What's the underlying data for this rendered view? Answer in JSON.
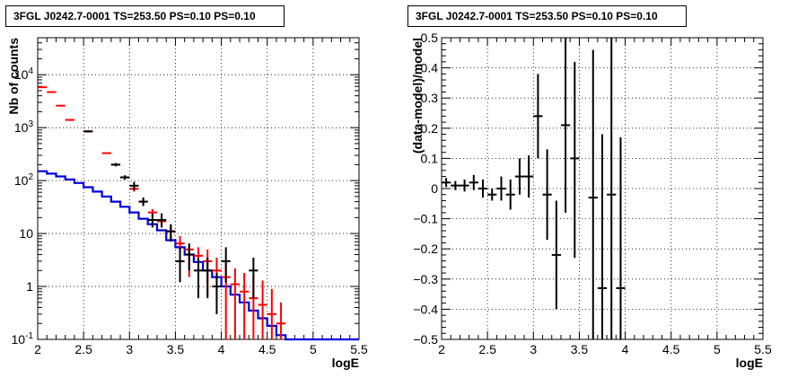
{
  "chart_data": [
    {
      "type": "scatter",
      "title": "3FGL J0242.7-0001 TS=253.50 PS=0.10 PS=0.10",
      "xlabel": "logE",
      "ylabel": "Nb of counts",
      "xlim": [
        2,
        5.5
      ],
      "ylim": [
        0.1,
        50000
      ],
      "yscale": "log",
      "grid": true,
      "xticks": [
        "2",
        "2.5",
        "3",
        "3.5",
        "4",
        "4.5",
        "5",
        "5.5"
      ],
      "yticks": [
        "10^-1",
        "1",
        "10",
        "10^2",
        "10^3",
        "10^4"
      ],
      "series": [
        {
          "color": "#ff0000",
          "points": [
            {
              "x": 2.05,
              "y": 5800,
              "ylo": 5800,
              "yhi": 5800
            },
            {
              "x": 2.15,
              "y": 4700,
              "ylo": 4700,
              "yhi": 4700
            },
            {
              "x": 2.25,
              "y": 2600,
              "ylo": 2600,
              "yhi": 2600
            },
            {
              "x": 2.35,
              "y": 1400,
              "ylo": 1400,
              "yhi": 1400
            },
            {
              "x": 2.55,
              "y": 850,
              "ylo": 850,
              "yhi": 850
            },
            {
              "x": 2.75,
              "y": 330,
              "ylo": 330,
              "yhi": 330
            },
            {
              "x": 2.85,
              "y": 200,
              "ylo": 190,
              "yhi": 210
            },
            {
              "x": 2.95,
              "y": 115,
              "ylo": 105,
              "yhi": 125
            },
            {
              "x": 3.05,
              "y": 70,
              "ylo": 62,
              "yhi": 78
            },
            {
              "x": 3.15,
              "y": 40,
              "ylo": 35,
              "yhi": 46
            },
            {
              "x": 3.25,
              "y": 25,
              "ylo": 21,
              "yhi": 29
            },
            {
              "x": 3.35,
              "y": 17,
              "ylo": 13,
              "yhi": 21
            },
            {
              "x": 3.45,
              "y": 11,
              "ylo": 8,
              "yhi": 14
            },
            {
              "x": 3.55,
              "y": 6.5,
              "ylo": 4.2,
              "yhi": 9
            },
            {
              "x": 3.65,
              "y": 5,
              "ylo": 1.5,
              "yhi": 6
            },
            {
              "x": 3.75,
              "y": 3.8,
              "ylo": 1.2,
              "yhi": 5.5
            },
            {
              "x": 3.85,
              "y": 3,
              "ylo": 0.7,
              "yhi": 5
            },
            {
              "x": 3.95,
              "y": 2,
              "ylo": 0.5,
              "yhi": 3.5
            },
            {
              "x": 4.05,
              "y": 1.5,
              "ylo": 0.1,
              "yhi": 2.8
            },
            {
              "x": 4.15,
              "y": 1.1,
              "ylo": 0.1,
              "yhi": 2.2
            },
            {
              "x": 4.25,
              "y": 0.8,
              "ylo": 0.1,
              "yhi": 1.8
            },
            {
              "x": 4.35,
              "y": 0.6,
              "ylo": 0.1,
              "yhi": 1.6
            },
            {
              "x": 4.45,
              "y": 0.45,
              "ylo": 0.1,
              "yhi": 1.3
            },
            {
              "x": 4.55,
              "y": 0.3,
              "ylo": 0.1,
              "yhi": 0.9
            },
            {
              "x": 4.65,
              "y": 0.2,
              "ylo": 0.1,
              "yhi": 0.5
            }
          ]
        },
        {
          "color": "#000000",
          "points": [
            {
              "x": 2.55,
              "y": 850,
              "ylo": 810,
              "yhi": 890
            },
            {
              "x": 2.85,
              "y": 200,
              "ylo": 185,
              "yhi": 215
            },
            {
              "x": 2.95,
              "y": 115,
              "ylo": 104,
              "yhi": 126
            },
            {
              "x": 3.05,
              "y": 80,
              "ylo": 65,
              "yhi": 95
            },
            {
              "x": 3.15,
              "y": 40,
              "ylo": 33,
              "yhi": 48
            },
            {
              "x": 3.25,
              "y": 18,
              "ylo": 13,
              "yhi": 24
            },
            {
              "x": 3.35,
              "y": 18,
              "ylo": 13,
              "yhi": 24
            },
            {
              "x": 3.45,
              "y": 11,
              "ylo": 7,
              "yhi": 15
            },
            {
              "x": 3.55,
              "y": 3,
              "ylo": 1.2,
              "yhi": 5.5
            },
            {
              "x": 3.65,
              "y": 4,
              "ylo": 2,
              "yhi": 6.5
            },
            {
              "x": 3.75,
              "y": 2,
              "ylo": 0.6,
              "yhi": 3.5
            },
            {
              "x": 3.85,
              "y": 2,
              "ylo": 0.6,
              "yhi": 3.5
            },
            {
              "x": 3.95,
              "y": 1,
              "ylo": 0.3,
              "yhi": 1.8
            },
            {
              "x": 4.05,
              "y": 3,
              "ylo": 1.2,
              "yhi": 5.5
            },
            {
              "x": 4.35,
              "y": 2,
              "ylo": 0.6,
              "yhi": 3.5
            }
          ]
        }
      ],
      "model_line": {
        "color": "#0000dd",
        "bin_edges": [
          2.0,
          2.1,
          2.2,
          2.3,
          2.4,
          2.5,
          2.6,
          2.7,
          2.8,
          2.9,
          3.0,
          3.1,
          3.2,
          3.3,
          3.4,
          3.5,
          3.6,
          3.7,
          3.8,
          3.9,
          4.0,
          4.1,
          4.2,
          4.3,
          4.4,
          4.5,
          4.6,
          4.7,
          5.5
        ],
        "values": [
          150,
          135,
          120,
          105,
          90,
          75,
          62,
          50,
          40,
          32,
          25,
          19,
          15,
          11.5,
          7.5,
          5.5,
          4,
          2.9,
          2.0,
          1.5,
          1.0,
          0.7,
          0.5,
          0.35,
          0.25,
          0.18,
          0.12,
          0.1
        ]
      }
    },
    {
      "type": "scatter",
      "title": "3FGL J0242.7-0001 TS=253.50 PS=0.10 PS=0.10",
      "xlabel": "logE",
      "ylabel": "(data-model)/model",
      "xlim": [
        2,
        5.5
      ],
      "ylim": [
        -0.5,
        0.5
      ],
      "grid": true,
      "xticks": [
        "2",
        "2.5",
        "3",
        "3.5",
        "4",
        "4.5",
        "5",
        "5.5"
      ],
      "yticks": [
        "−0.5",
        "−0.4",
        "−0.3",
        "−0.2",
        "−0.1",
        "0",
        "0.1",
        "0.2",
        "0.3",
        "0.4",
        "0.5"
      ],
      "series": [
        {
          "color": "#000000",
          "points": [
            {
              "x": 2.05,
              "y": 0.02,
              "ylo": 0.005,
              "yhi": 0.035
            },
            {
              "x": 2.15,
              "y": 0.01,
              "ylo": -0.005,
              "yhi": 0.025
            },
            {
              "x": 2.25,
              "y": 0.01,
              "ylo": -0.01,
              "yhi": 0.03
            },
            {
              "x": 2.35,
              "y": 0.02,
              "ylo": -0.005,
              "yhi": 0.045
            },
            {
              "x": 2.45,
              "y": 0.0,
              "ylo": -0.03,
              "yhi": 0.03
            },
            {
              "x": 2.55,
              "y": -0.02,
              "ylo": -0.04,
              "yhi": 0.0
            },
            {
              "x": 2.65,
              "y": 0.0,
              "ylo": -0.04,
              "yhi": 0.04
            },
            {
              "x": 2.75,
              "y": -0.02,
              "ylo": -0.07,
              "yhi": 0.03
            },
            {
              "x": 2.85,
              "y": 0.04,
              "ylo": -0.02,
              "yhi": 0.1
            },
            {
              "x": 2.95,
              "y": 0.04,
              "ylo": -0.03,
              "yhi": 0.11
            },
            {
              "x": 3.05,
              "y": 0.24,
              "ylo": 0.1,
              "yhi": 0.38
            },
            {
              "x": 3.15,
              "y": -0.02,
              "ylo": -0.17,
              "yhi": 0.13
            },
            {
              "x": 3.25,
              "y": -0.22,
              "ylo": -0.4,
              "yhi": -0.04
            },
            {
              "x": 3.35,
              "y": 0.21,
              "ylo": -0.08,
              "yhi": 0.5
            },
            {
              "x": 3.45,
              "y": 0.1,
              "ylo": -0.23,
              "yhi": 0.42
            },
            {
              "x": 3.65,
              "y": -0.03,
              "ylo": -0.5,
              "yhi": 0.46
            },
            {
              "x": 3.75,
              "y": -0.33,
              "ylo": -0.5,
              "yhi": 0.18
            },
            {
              "x": 3.85,
              "y": -0.02,
              "ylo": -0.5,
              "yhi": 0.5
            },
            {
              "x": 3.95,
              "y": -0.33,
              "ylo": -0.5,
              "yhi": 0.17
            }
          ]
        }
      ]
    }
  ]
}
